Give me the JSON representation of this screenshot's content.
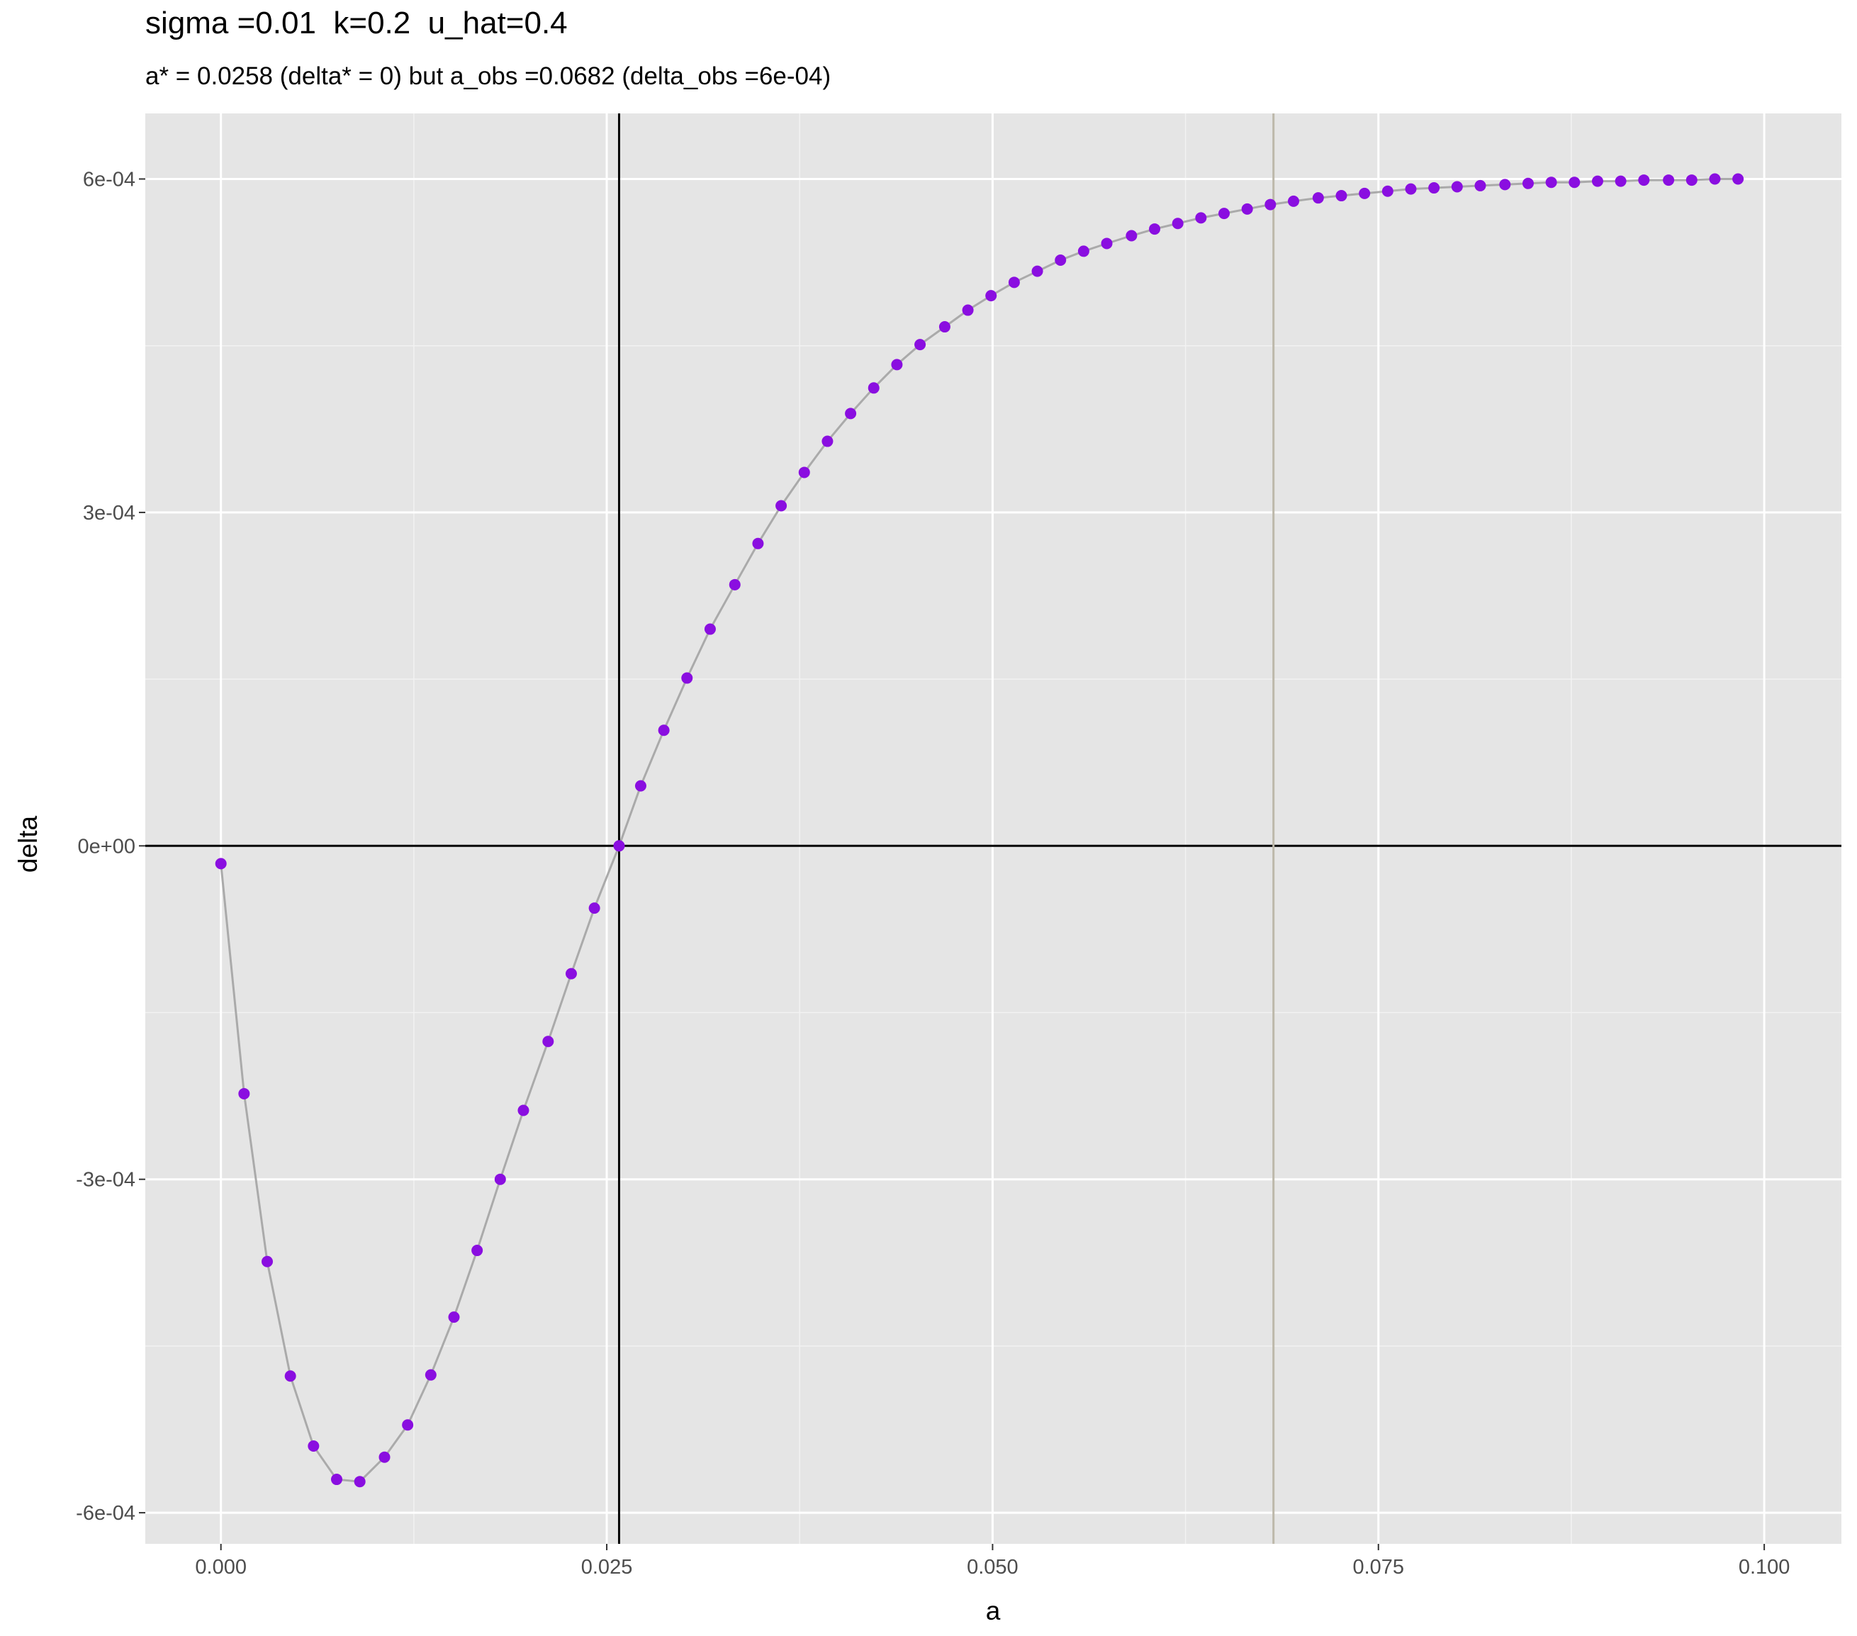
{
  "chart_data": {
    "type": "scatter",
    "title": "sigma =0.01  k=0.2  u_hat=0.4",
    "subtitle": "a* = 0.0258 (delta* = 0) but a_obs =0.0682 (delta_obs =6e-04)",
    "xlabel": "a",
    "ylabel": "delta",
    "xlim": [
      -0.0049,
      0.105
    ],
    "ylim": [
      -0.000628,
      0.000659
    ],
    "x_ticks": [
      0,
      0.025,
      0.05,
      0.075,
      0.1
    ],
    "x_tick_labels": [
      "0.000",
      "0.025",
      "0.050",
      "0.075",
      "0.100"
    ],
    "y_ticks": [
      -0.0006,
      -0.0003,
      0,
      0.0003,
      0.0006
    ],
    "y_tick_labels": [
      "-6e-04",
      "-3e-04",
      "0e+00",
      "3e-04",
      "6e-04"
    ],
    "grid": true,
    "legend": "none",
    "reference_lines": [
      {
        "orientation": "horizontal",
        "value": 0,
        "color": "#000000"
      },
      {
        "orientation": "vertical",
        "value": 0.0258,
        "color": "#000000"
      },
      {
        "orientation": "vertical",
        "value": 0.0682,
        "color": "#bdb8aa"
      }
    ],
    "series": [
      {
        "point_color": "#8a0ee0",
        "line_color": "#aaaaaa",
        "x": [
          0.0,
          0.0015,
          0.003,
          0.0045,
          0.006,
          0.0075,
          0.009,
          0.0106,
          0.0121,
          0.0136,
          0.0151,
          0.0166,
          0.0181,
          0.0196,
          0.0212,
          0.0227,
          0.0242,
          0.0258,
          0.0272,
          0.0287,
          0.0302,
          0.0317,
          0.0333,
          0.0348,
          0.0363,
          0.0378,
          0.0393,
          0.0408,
          0.0423,
          0.0438,
          0.0453,
          0.0469,
          0.0484,
          0.0499,
          0.0514,
          0.0529,
          0.0544,
          0.0559,
          0.0574,
          0.059,
          0.0605,
          0.062,
          0.0635,
          0.065,
          0.0665,
          0.068,
          0.0695,
          0.0711,
          0.0726,
          0.0741,
          0.0756,
          0.0771,
          0.0786,
          0.0801,
          0.0816,
          0.0832,
          0.0847,
          0.0862,
          0.0877,
          0.0892,
          0.0907,
          0.0922,
          0.0938,
          0.0953,
          0.0968,
          0.0983
        ],
        "y": [
          -1.6e-05,
          -0.000223,
          -0.000374,
          -0.000477,
          -0.00054,
          -0.00057,
          -0.000572,
          -0.00055,
          -0.000521,
          -0.000476,
          -0.000424,
          -0.000364,
          -0.0003,
          -0.000238,
          -0.000176,
          -0.000115,
          -5.6e-05,
          0.0,
          5.4e-05,
          0.000104,
          0.000151,
          0.000195,
          0.000235,
          0.000272,
          0.000306,
          0.000336,
          0.000364,
          0.000389,
          0.000412,
          0.000433,
          0.000451,
          0.000467,
          0.000482,
          0.000495,
          0.000507,
          0.000517,
          0.000527,
          0.000535,
          0.000542,
          0.000549,
          0.000555,
          0.00056,
          0.000565,
          0.000569,
          0.000573,
          0.000577,
          0.00058,
          0.000583,
          0.000585,
          0.000587,
          0.000589,
          0.000591,
          0.000592,
          0.000593,
          0.000594,
          0.000595,
          0.000596,
          0.000597,
          0.000597,
          0.000598,
          0.000598,
          0.000599,
          0.000599,
          0.000599,
          0.0006,
          0.0006
        ]
      }
    ]
  }
}
